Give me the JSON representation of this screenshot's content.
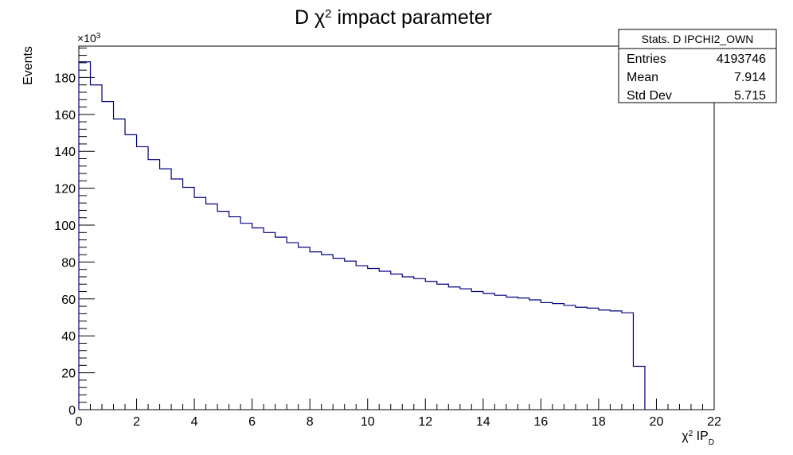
{
  "chart_data": {
    "type": "histogram",
    "title": "D χ² impact parameter",
    "title_parts": {
      "pre": "D χ",
      "sup": "2",
      "post": " impact parameter"
    },
    "xlabel": "χ² IP_D",
    "xlabel_parts": {
      "pre": "χ",
      "sup": "2",
      "mid": " IP",
      "sub": "D"
    },
    "ylabel": "Events",
    "y_multiplier": "×10³",
    "y_multiplier_parts": {
      "base": "×10",
      "sup": "3"
    },
    "xlim": [
      0,
      22
    ],
    "ylim": [
      0,
      197
    ],
    "x_ticks": [
      0,
      2,
      4,
      6,
      8,
      10,
      12,
      14,
      16,
      18,
      20,
      22
    ],
    "y_ticks": [
      0,
      20,
      40,
      60,
      80,
      100,
      120,
      140,
      160,
      180
    ],
    "bin_width": 0.4,
    "bin_start": 0,
    "values": [
      188.5,
      176,
      167,
      157.5,
      149,
      142.5,
      135.5,
      130.5,
      125,
      120.5,
      115,
      111.5,
      107.5,
      104.5,
      101,
      98.5,
      96,
      93.5,
      90.5,
      88,
      85.5,
      84,
      82,
      80.5,
      78,
      76.5,
      75,
      73.5,
      72,
      71,
      69.5,
      68,
      66.5,
      65.5,
      64,
      63,
      62,
      61,
      60.5,
      59.5,
      58,
      57.5,
      56.5,
      55.5,
      55,
      54,
      53.5,
      52.5,
      23.5
    ],
    "line_color": "#000080",
    "grid": false,
    "legend": "none"
  },
  "stats_box": {
    "title": "Stats. D IPCHI2_OWN",
    "rows": [
      {
        "label": "Entries",
        "value": "4193746"
      },
      {
        "label": "Mean",
        "value": "7.914"
      },
      {
        "label": "Std Dev",
        "value": "5.715"
      }
    ]
  }
}
